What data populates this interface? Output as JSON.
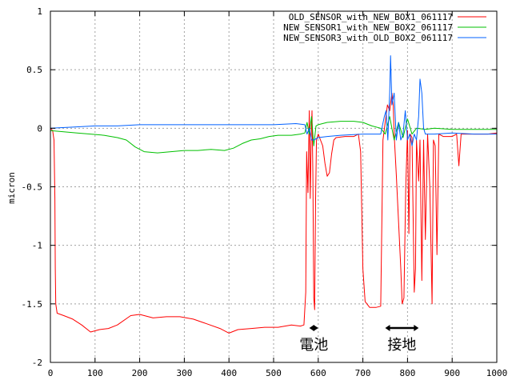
{
  "chart_data": {
    "type": "line",
    "title": "",
    "xlabel": "",
    "ylabel": "micron",
    "xlim": [
      0,
      1000
    ],
    "ylim": [
      -2,
      1
    ],
    "x_ticks": [
      0,
      100,
      200,
      300,
      400,
      500,
      600,
      700,
      800,
      900,
      1000
    ],
    "y_ticks": [
      -2,
      -1.5,
      -1,
      -0.5,
      0,
      0.5,
      1
    ],
    "grid": true,
    "legend_position": "top-right",
    "series": [
      {
        "name": "OLD_SENSOR_with_NEW_BOX1_061117",
        "color": "#ff0000",
        "points": [
          [
            0,
            0
          ],
          [
            5,
            -0.02
          ],
          [
            8,
            -0.1
          ],
          [
            10,
            -0.6
          ],
          [
            11,
            -1.2
          ],
          [
            12,
            -1.5
          ],
          [
            15,
            -1.58
          ],
          [
            30,
            -1.6
          ],
          [
            50,
            -1.63
          ],
          [
            70,
            -1.68
          ],
          [
            90,
            -1.74
          ],
          [
            110,
            -1.72
          ],
          [
            130,
            -1.71
          ],
          [
            150,
            -1.68
          ],
          [
            180,
            -1.6
          ],
          [
            200,
            -1.59
          ],
          [
            230,
            -1.62
          ],
          [
            260,
            -1.61
          ],
          [
            290,
            -1.61
          ],
          [
            320,
            -1.63
          ],
          [
            350,
            -1.67
          ],
          [
            380,
            -1.71
          ],
          [
            400,
            -1.75
          ],
          [
            420,
            -1.72
          ],
          [
            450,
            -1.71
          ],
          [
            480,
            -1.7
          ],
          [
            510,
            -1.7
          ],
          [
            540,
            -1.68
          ],
          [
            560,
            -1.69
          ],
          [
            568,
            -1.68
          ],
          [
            572,
            -1.4
          ],
          [
            574,
            -0.2
          ],
          [
            577,
            -0.55
          ],
          [
            580,
            0.15
          ],
          [
            582,
            -0.6
          ],
          [
            584,
            -0.1
          ],
          [
            586,
            0.15
          ],
          [
            588,
            -0.4
          ],
          [
            590,
            -1.45
          ],
          [
            592,
            -1.55
          ],
          [
            594,
            -0.6
          ],
          [
            596,
            -0.1
          ],
          [
            600,
            -0.05
          ],
          [
            605,
            -0.1
          ],
          [
            610,
            -0.15
          ],
          [
            615,
            -0.3
          ],
          [
            620,
            -0.41
          ],
          [
            625,
            -0.38
          ],
          [
            630,
            -0.22
          ],
          [
            635,
            -0.1
          ],
          [
            640,
            -0.08
          ],
          [
            660,
            -0.07
          ],
          [
            680,
            -0.07
          ],
          [
            690,
            -0.05
          ],
          [
            695,
            -0.2
          ],
          [
            697,
            -0.6
          ],
          [
            700,
            -1.2
          ],
          [
            705,
            -1.48
          ],
          [
            715,
            -1.53
          ],
          [
            730,
            -1.53
          ],
          [
            740,
            -1.52
          ],
          [
            745,
            -0.1
          ],
          [
            750,
            0.05
          ],
          [
            755,
            0.2
          ],
          [
            760,
            0.15
          ],
          [
            765,
            0.3
          ],
          [
            768,
            0.2
          ],
          [
            770,
            -0.05
          ],
          [
            775,
            -0.4
          ],
          [
            780,
            -0.8
          ],
          [
            785,
            -1.2
          ],
          [
            788,
            -1.5
          ],
          [
            792,
            -1.45
          ],
          [
            796,
            -0.5
          ],
          [
            800,
            -0.02
          ],
          [
            803,
            -0.9
          ],
          [
            806,
            -0.05
          ],
          [
            810,
            -0.08
          ],
          [
            815,
            -1.4
          ],
          [
            818,
            -1.2
          ],
          [
            820,
            -0.1
          ],
          [
            825,
            -0.45
          ],
          [
            828,
            -0.1
          ],
          [
            832,
            -1.3
          ],
          [
            836,
            -0.1
          ],
          [
            840,
            -0.95
          ],
          [
            845,
            -0.05
          ],
          [
            850,
            -0.5
          ],
          [
            855,
            -1.5
          ],
          [
            858,
            -0.1
          ],
          [
            862,
            -0.15
          ],
          [
            866,
            -1.08
          ],
          [
            870,
            -0.05
          ],
          [
            880,
            -0.07
          ],
          [
            900,
            -0.07
          ],
          [
            910,
            -0.05
          ],
          [
            915,
            -0.32
          ],
          [
            920,
            -0.05
          ],
          [
            940,
            -0.05
          ],
          [
            960,
            -0.05
          ],
          [
            980,
            -0.05
          ],
          [
            1000,
            -0.04
          ]
        ]
      },
      {
        "name": "NEW_SENSOR1_with_NEW_BOX2_061117",
        "color": "#00c000",
        "points": [
          [
            0,
            -0.02
          ],
          [
            30,
            -0.03
          ],
          [
            60,
            -0.04
          ],
          [
            90,
            -0.05
          ],
          [
            120,
            -0.06
          ],
          [
            150,
            -0.08
          ],
          [
            170,
            -0.1
          ],
          [
            190,
            -0.16
          ],
          [
            210,
            -0.2
          ],
          [
            240,
            -0.21
          ],
          [
            270,
            -0.2
          ],
          [
            300,
            -0.19
          ],
          [
            330,
            -0.19
          ],
          [
            360,
            -0.18
          ],
          [
            390,
            -0.19
          ],
          [
            410,
            -0.17
          ],
          [
            430,
            -0.13
          ],
          [
            450,
            -0.1
          ],
          [
            470,
            -0.09
          ],
          [
            490,
            -0.07
          ],
          [
            510,
            -0.06
          ],
          [
            540,
            -0.06
          ],
          [
            560,
            -0.05
          ],
          [
            570,
            -0.04
          ],
          [
            575,
            0.05
          ],
          [
            580,
            -0.05
          ],
          [
            585,
            0.1
          ],
          [
            590,
            -0.15
          ],
          [
            595,
            0.02
          ],
          [
            600,
            0.03
          ],
          [
            620,
            0.05
          ],
          [
            650,
            0.06
          ],
          [
            680,
            0.06
          ],
          [
            700,
            0.05
          ],
          [
            720,
            0.02
          ],
          [
            740,
            0.0
          ],
          [
            750,
            -0.05
          ],
          [
            760,
            0.1
          ],
          [
            770,
            -0.1
          ],
          [
            780,
            0.05
          ],
          [
            790,
            -0.08
          ],
          [
            800,
            0.08
          ],
          [
            810,
            -0.05
          ],
          [
            820,
            0.0
          ],
          [
            840,
            -0.01
          ],
          [
            860,
            0.0
          ],
          [
            900,
            -0.01
          ],
          [
            950,
            -0.01
          ],
          [
            1000,
            -0.01
          ]
        ]
      },
      {
        "name": "NEW_SENSOR3_with_OLD_BOX2_061117",
        "color": "#0060ff",
        "points": [
          [
            0,
            0.0
          ],
          [
            50,
            0.01
          ],
          [
            100,
            0.02
          ],
          [
            150,
            0.02
          ],
          [
            200,
            0.03
          ],
          [
            250,
            0.03
          ],
          [
            300,
            0.03
          ],
          [
            350,
            0.03
          ],
          [
            400,
            0.03
          ],
          [
            450,
            0.03
          ],
          [
            500,
            0.03
          ],
          [
            550,
            0.04
          ],
          [
            570,
            0.03
          ],
          [
            575,
            -0.05
          ],
          [
            580,
            0.0
          ],
          [
            585,
            -0.1
          ],
          [
            590,
            -0.1
          ],
          [
            600,
            -0.08
          ],
          [
            620,
            -0.07
          ],
          [
            650,
            -0.06
          ],
          [
            700,
            -0.05
          ],
          [
            740,
            -0.05
          ],
          [
            748,
            0.1
          ],
          [
            752,
            0.15
          ],
          [
            756,
            -0.1
          ],
          [
            760,
            0.3
          ],
          [
            762,
            0.62
          ],
          [
            765,
            0.2
          ],
          [
            770,
            0.3
          ],
          [
            775,
            -0.1
          ],
          [
            780,
            0.05
          ],
          [
            785,
            -0.1
          ],
          [
            790,
            -0.05
          ],
          [
            795,
            0.15
          ],
          [
            800,
            -0.1
          ],
          [
            805,
            -0.05
          ],
          [
            810,
            -0.15
          ],
          [
            815,
            -0.05
          ],
          [
            820,
            -0.1
          ],
          [
            825,
            0.1
          ],
          [
            828,
            0.42
          ],
          [
            832,
            0.3
          ],
          [
            836,
            0.0
          ],
          [
            840,
            -0.05
          ],
          [
            860,
            -0.05
          ],
          [
            900,
            -0.04
          ],
          [
            950,
            -0.05
          ],
          [
            1000,
            -0.05
          ]
        ]
      }
    ],
    "annotations": [
      {
        "label": "電池",
        "range": [
          580,
          600
        ]
      },
      {
        "label": "接地",
        "range": [
          750,
          825
        ]
      }
    ]
  }
}
